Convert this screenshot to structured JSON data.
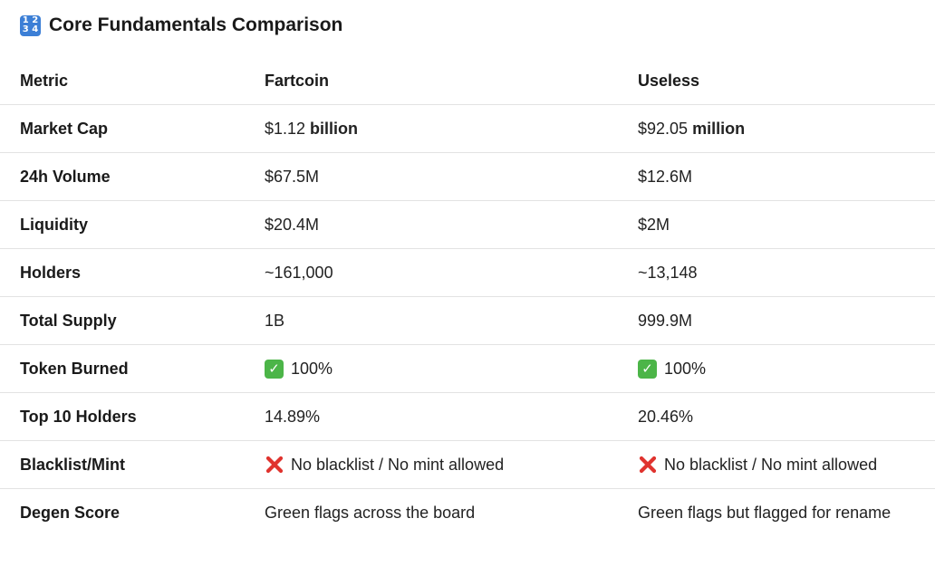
{
  "heading": {
    "icon": "input-numbers-keycap-icon",
    "icon_digits": [
      "1",
      "2",
      "3",
      "4"
    ],
    "title": "Core Fundamentals Comparison"
  },
  "colors": {
    "text": "#1f1f1f",
    "divider": "#e3e3e3",
    "check_green": "#4cb548",
    "cross_red": "#e0332e",
    "keycap_blue": "#3c7fd6"
  },
  "table": {
    "headers": [
      "Metric",
      "Fartcoin",
      "Useless"
    ],
    "rows": [
      {
        "metric": "Market Cap",
        "a": "$1.12",
        "a_unit": "billion",
        "b": "$92.05",
        "b_unit": "million"
      },
      {
        "metric": "24h Volume",
        "a": "$67.5M",
        "b": "$12.6M"
      },
      {
        "metric": "Liquidity",
        "a": "$20.4M",
        "b": "$2M"
      },
      {
        "metric": "Holders",
        "a": "~161,000",
        "b": "~13,148"
      },
      {
        "metric": "Total Supply",
        "a": "1B",
        "b": "999.9M"
      },
      {
        "metric": "Token Burned",
        "a": "100%",
        "a_icon": "check-mark-icon",
        "b": "100%",
        "b_icon": "check-mark-icon"
      },
      {
        "metric": "Top 10 Holders",
        "a": "14.89%",
        "b": "20.46%"
      },
      {
        "metric": "Blacklist/Mint",
        "a": "No blacklist / No mint allowed",
        "a_icon": "cross-mark-icon",
        "b": "No blacklist / No mint allowed",
        "b_icon": "cross-mark-icon"
      },
      {
        "metric": "Degen Score",
        "a": "Green flags across the board",
        "b": "Green flags but flagged for rename"
      }
    ]
  }
}
